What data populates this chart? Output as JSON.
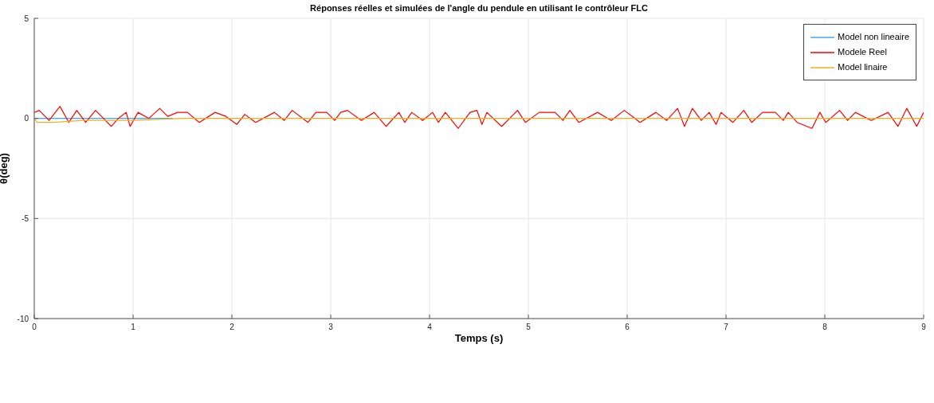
{
  "chart_data": {
    "type": "line",
    "title": "Réponses réelles et simulées de l'angle du pendule en utilisant le contrôleur FLC",
    "xlabel": "Temps (s)",
    "ylabel": "θ(deg)",
    "xlim": [
      0,
      9
    ],
    "xticks": [
      0,
      1,
      2,
      3,
      4,
      5,
      6,
      7,
      8,
      9
    ],
    "ylim": [
      -10,
      5
    ],
    "yticks": [
      -10,
      -5,
      0,
      5
    ],
    "grid": true,
    "legend": "top right",
    "line_style": "solid",
    "series": [
      {
        "name": "Model non lineaire",
        "color": "#3fa9f5",
        "x": [
          0,
          0.5,
          1,
          1.4
        ],
        "values": [
          0,
          0,
          0,
          0
        ]
      },
      {
        "name": "Modele Reel",
        "color": "#ff0000",
        "x": [
          0,
          0.05,
          0.15,
          0.26,
          0.35,
          0.43,
          0.52,
          0.62,
          0.7,
          0.78,
          0.85,
          0.93,
          0.97,
          1.05,
          1.16,
          1.27,
          1.35,
          1.45,
          1.55,
          1.67,
          1.83,
          1.94,
          2.05,
          2.13,
          2.24,
          2.43,
          2.53,
          2.61,
          2.77,
          2.85,
          2.96,
          3.04,
          3.1,
          3.17,
          3.31,
          3.44,
          3.56,
          3.69,
          3.75,
          3.82,
          3.93,
          4.03,
          4.09,
          4.16,
          4.29,
          4.41,
          4.48,
          4.53,
          4.58,
          4.73,
          4.89,
          4.97,
          5.11,
          5.27,
          5.35,
          5.42,
          5.51,
          5.7,
          5.84,
          5.97,
          6.08,
          6.13,
          6.29,
          6.4,
          6.51,
          6.58,
          6.66,
          6.75,
          6.83,
          6.9,
          6.95,
          7.07,
          7.18,
          7.26,
          7.37,
          7.5,
          7.58,
          7.63,
          7.72,
          7.87,
          7.95,
          8.01,
          8.15,
          8.23,
          8.31,
          8.47,
          8.64,
          8.74,
          8.83,
          8.93,
          9
        ],
        "values": [
          0.3,
          0.4,
          -0.1,
          0.6,
          -0.2,
          0.4,
          -0.2,
          0.4,
          0,
          -0.4,
          0,
          0.3,
          -0.4,
          0.3,
          0,
          0.5,
          0.1,
          0.3,
          0.3,
          -0.2,
          0.3,
          0.1,
          -0.3,
          0.2,
          -0.2,
          0.3,
          -0.1,
          0.4,
          -0.2,
          0.3,
          0.3,
          -0.1,
          0.3,
          0.4,
          -0.1,
          0.3,
          -0.4,
          0.3,
          -0.2,
          0.3,
          -0.1,
          0.3,
          -0.2,
          0.3,
          -0.5,
          0.3,
          0.4,
          -0.3,
          0.3,
          -0.4,
          0.4,
          -0.2,
          0.3,
          0.3,
          -0.1,
          0.4,
          -0.2,
          0.3,
          -0.1,
          0.4,
          0,
          -0.2,
          0.3,
          -0.1,
          0.5,
          -0.4,
          0.5,
          -0.1,
          0.3,
          -0.3,
          0.3,
          -0.2,
          0.4,
          -0.2,
          0.3,
          0.3,
          -0.1,
          0.3,
          -0.2,
          -0.5,
          0.3,
          -0.2,
          0.4,
          -0.1,
          0.3,
          -0.1,
          0.3,
          -0.4,
          0.5,
          -0.4,
          0.3
        ]
      },
      {
        "name": "Model linaire",
        "color": "#edb120",
        "x": [
          0,
          0.03,
          0.2,
          0.5,
          1,
          1.5,
          2,
          9
        ],
        "values": [
          0,
          -0.2,
          -0.2,
          -0.1,
          -0.1,
          0,
          0,
          0
        ]
      }
    ]
  }
}
